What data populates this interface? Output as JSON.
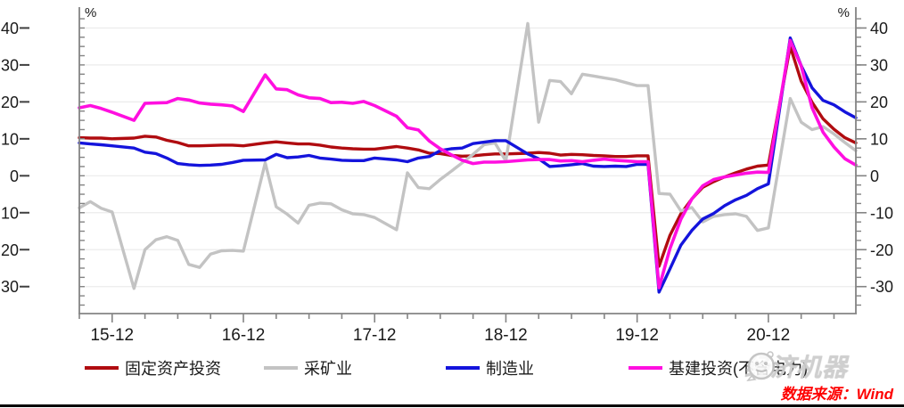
{
  "chart_data": {
    "type": "line",
    "title": "",
    "xlabel": "",
    "ylabel": "%",
    "unit_left": "%",
    "unit_right": "%",
    "grid": "horizontal",
    "legend_position": "bottom",
    "ylim": [
      -37.3,
      44.2
    ],
    "x_tick_labels": [
      "15-12",
      "16-12",
      "17-12",
      "18-12",
      "19-12",
      "20-12"
    ],
    "y_ticks": {
      "values": [
        40,
        30,
        20,
        10,
        0,
        -10,
        -20,
        -30
      ],
      "left_labels": [
        "40",
        "30",
        "20",
        "10",
        "0",
        "10",
        "20",
        "30"
      ],
      "right_labels": [
        "40",
        "30",
        "20",
        "10",
        "0",
        "-10",
        "-20",
        "-30"
      ]
    },
    "x": [
      "15-09",
      "15-10",
      "15-11",
      "15-12",
      "16-02",
      "16-03",
      "16-04",
      "16-05",
      "16-06",
      "16-07",
      "16-08",
      "16-09",
      "16-10",
      "16-11",
      "16-12",
      "17-02",
      "17-03",
      "17-04",
      "17-05",
      "17-06",
      "17-07",
      "17-08",
      "17-09",
      "17-10",
      "17-11",
      "17-12",
      "18-02",
      "18-03",
      "18-04",
      "18-05",
      "18-06",
      "18-07",
      "18-08",
      "18-09",
      "18-10",
      "18-11",
      "18-12",
      "19-02",
      "19-03",
      "19-04",
      "19-05",
      "19-06",
      "19-07",
      "19-08",
      "19-09",
      "19-10",
      "19-11",
      "19-12",
      "20-01",
      "20-02",
      "20-03",
      "20-04",
      "20-05",
      "20-06",
      "20-07",
      "20-08",
      "20-09",
      "20-10",
      "20-11",
      "20-12",
      "21-02",
      "21-03",
      "21-04",
      "21-05",
      "21-06",
      "21-07",
      "21-08"
    ],
    "series": [
      {
        "name": "固定资产投资",
        "color": "#b00c10",
        "width": 3.4,
        "values": [
          10.3,
          10.2,
          10.2,
          10.0,
          10.2,
          10.7,
          10.5,
          9.6,
          9.0,
          8.1,
          8.1,
          8.2,
          8.3,
          8.3,
          8.1,
          8.9,
          9.2,
          8.9,
          8.6,
          8.6,
          8.3,
          7.8,
          7.5,
          7.3,
          7.2,
          7.2,
          7.9,
          7.5,
          7.0,
          6.1,
          6.0,
          5.5,
          5.3,
          5.4,
          5.7,
          5.9,
          5.9,
          6.1,
          6.3,
          6.1,
          5.6,
          5.8,
          5.7,
          5.5,
          5.4,
          5.2,
          5.2,
          5.4,
          5.4,
          -24.5,
          -16.1,
          -10.3,
          -6.3,
          -3.1,
          -1.6,
          -0.3,
          0.8,
          1.8,
          2.6,
          2.9,
          35.0,
          25.6,
          19.9,
          15.4,
          12.6,
          10.3,
          8.9
        ]
      },
      {
        "name": "采矿业",
        "color": "#c3c3c3",
        "width": 3.4,
        "values": [
          -8.7,
          -7.0,
          -8.8,
          -9.8,
          -30.5,
          -20.0,
          -17.3,
          -16.5,
          -17.5,
          -24.0,
          -24.8,
          -21.2,
          -20.3,
          -20.2,
          -20.4,
          3.5,
          -8.4,
          -10.4,
          -12.8,
          -8.0,
          -7.4,
          -7.6,
          -9.2,
          -10.3,
          -10.5,
          -11.3,
          -14.6,
          0.8,
          -3.2,
          -3.5,
          -1.0,
          1.2,
          3.5,
          5.8,
          8.4,
          8.9,
          4.0,
          41.2,
          14.5,
          25.8,
          25.5,
          22.2,
          27.5,
          27.0,
          26.5,
          26.0,
          25.2,
          24.4,
          24.4,
          -4.8,
          -5.0,
          -9.5,
          -8.6,
          -12.5,
          -11.0,
          -10.5,
          -10.3,
          -11.0,
          -14.8,
          -14.1,
          20.9,
          14.5,
          12.5,
          13.3,
          11.3,
          9.0,
          6.8
        ]
      },
      {
        "name": "制造业",
        "color": "#1414dc",
        "width": 3.4,
        "values": [
          8.9,
          8.6,
          8.4,
          8.1,
          7.5,
          6.4,
          6.0,
          4.8,
          3.3,
          3.0,
          2.8,
          2.9,
          3.1,
          3.6,
          4.2,
          4.3,
          5.8,
          4.9,
          5.1,
          5.5,
          4.8,
          4.5,
          4.2,
          4.1,
          4.1,
          4.8,
          4.3,
          3.8,
          4.8,
          5.2,
          6.8,
          7.3,
          7.5,
          8.7,
          9.1,
          9.5,
          9.5,
          5.9,
          4.6,
          2.5,
          2.7,
          3.0,
          3.3,
          2.6,
          2.5,
          2.6,
          2.5,
          3.1,
          3.1,
          -31.5,
          -25.2,
          -18.8,
          -14.8,
          -11.7,
          -10.2,
          -8.1,
          -6.5,
          -5.3,
          -3.5,
          -2.2,
          37.3,
          29.8,
          23.8,
          20.4,
          19.2,
          17.3,
          15.7
        ]
      },
      {
        "name": "基建投资(不含电力)",
        "color": "#ff0fe0",
        "width": 3.6,
        "values": [
          18.4,
          19.0,
          18.2,
          17.2,
          15.0,
          19.6,
          19.7,
          19.8,
          20.9,
          20.5,
          19.7,
          19.4,
          19.2,
          18.9,
          17.4,
          27.3,
          23.5,
          23.3,
          21.9,
          21.1,
          20.9,
          19.8,
          19.9,
          19.6,
          20.1,
          19.0,
          16.1,
          13.0,
          12.4,
          9.4,
          7.3,
          5.7,
          4.2,
          3.3,
          3.7,
          3.7,
          3.8,
          4.3,
          4.4,
          4.4,
          4.0,
          4.1,
          3.8,
          4.2,
          4.5,
          4.2,
          4.0,
          3.8,
          3.8,
          -30.3,
          -19.7,
          -11.8,
          -6.3,
          -2.7,
          -1.0,
          -0.3,
          0.2,
          0.7,
          1.0,
          0.9,
          36.6,
          29.7,
          18.4,
          11.8,
          7.8,
          4.6,
          2.9
        ]
      }
    ]
  },
  "watermark": {
    "text": "经济机器"
  },
  "source_note": "数据来源：Wind",
  "colors": {
    "axis": "#848484",
    "grid": "#ebebeb",
    "tick_text": "#1a1a1a",
    "source_red": "#fe0000",
    "watermark_gray": "#cdcdcd"
  }
}
